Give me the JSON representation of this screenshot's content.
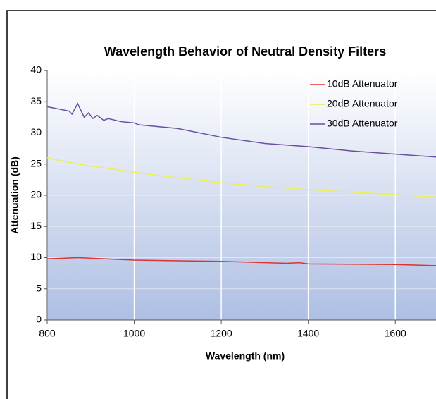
{
  "chart_data": {
    "type": "line",
    "title": "Wavelength Behavior of Neutral Density Filters",
    "x_label": "Wavelength (nm)",
    "y_label": "Attenuation (dB)",
    "xlim": [
      800,
      1700
    ],
    "xticks": [
      800,
      1000,
      1200,
      1400,
      1600
    ],
    "ylim": [
      0,
      40
    ],
    "yticks": [
      0,
      5,
      10,
      15,
      20,
      25,
      30,
      35,
      40
    ],
    "grid": true,
    "legend": "upper right",
    "series": [
      {
        "name": "10dB Attenuator",
        "color": "#e03030",
        "x": [
          800,
          870,
          1000,
          1200,
          1350,
          1380,
          1400,
          1600,
          1700
        ],
        "values": [
          9.8,
          10.0,
          9.6,
          9.4,
          9.1,
          9.2,
          9.0,
          8.9,
          8.7
        ]
      },
      {
        "name": "20dB Attenuator",
        "color": "#eeee55",
        "x": [
          800,
          870,
          1000,
          1100,
          1200,
          1300,
          1400,
          1500,
          1600,
          1700
        ],
        "values": [
          26.0,
          25.0,
          23.7,
          22.8,
          22.0,
          21.4,
          20.9,
          20.5,
          20.1,
          19.7
        ]
      },
      {
        "name": "30dB Attenuator",
        "color": "#6a4fa0",
        "x": [
          800,
          850,
          857,
          870,
          885,
          895,
          905,
          915,
          930,
          940,
          970,
          1000,
          1010,
          1100,
          1200,
          1300,
          1400,
          1500,
          1600,
          1700
        ],
        "values": [
          34.2,
          33.5,
          33.0,
          34.7,
          32.5,
          33.2,
          32.3,
          32.8,
          32.0,
          32.3,
          31.8,
          31.6,
          31.3,
          30.7,
          29.3,
          28.3,
          27.8,
          27.1,
          26.6,
          26.1
        ]
      }
    ]
  }
}
